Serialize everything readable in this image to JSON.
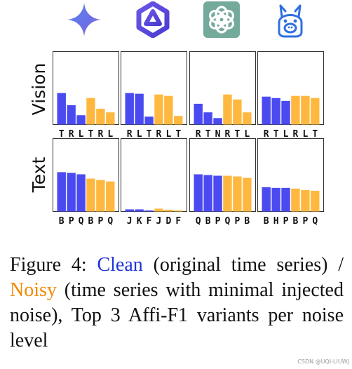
{
  "icons": [
    "gemini-sparkle-icon",
    "qwen-hexagon-icon",
    "openai-logo-icon",
    "llama-icon"
  ],
  "row_labels": [
    "Vision",
    "Text"
  ],
  "colors": {
    "clean": "#4a4af0",
    "noisy": "#ffb83f",
    "clean_text": "#1f33d9",
    "noisy_text": "#f08a00"
  },
  "chart_data": {
    "type": "bar",
    "ylim": [
      0,
      1
    ],
    "grid": false,
    "panels": [
      {
        "row": "Vision",
        "model": "gemini-sparkle-icon",
        "labels": [
          "T",
          "R",
          "L",
          "T",
          "R",
          "L"
        ],
        "values": [
          0.44,
          0.27,
          0.13,
          0.37,
          0.22,
          0.17
        ]
      },
      {
        "row": "Vision",
        "model": "qwen-hexagon-icon",
        "labels": [
          "R",
          "L",
          "T",
          "R",
          "L",
          "T"
        ],
        "values": [
          0.44,
          0.43,
          0.11,
          0.42,
          0.4,
          0.12
        ]
      },
      {
        "row": "Vision",
        "model": "openai-logo-icon",
        "labels": [
          "R",
          "T",
          "N",
          "R",
          "T",
          "L"
        ],
        "values": [
          0.29,
          0.17,
          0.09,
          0.42,
          0.35,
          0.17
        ]
      },
      {
        "row": "Vision",
        "model": "llama-icon",
        "labels": [
          "R",
          "T",
          "L",
          "R",
          "L",
          "T"
        ],
        "values": [
          0.39,
          0.37,
          0.33,
          0.4,
          0.4,
          0.37
        ]
      },
      {
        "row": "Text",
        "model": "gemini-sparkle-icon",
        "labels": [
          "B",
          "P",
          "Q",
          "B",
          "P",
          "Q"
        ],
        "values": [
          0.55,
          0.54,
          0.52,
          0.46,
          0.44,
          0.42
        ]
      },
      {
        "row": "Text",
        "model": "qwen-hexagon-icon",
        "labels": [
          "J",
          "K",
          "F",
          "J",
          "D",
          "F"
        ],
        "values": [
          0.03,
          0.03,
          0.015,
          0.04,
          0.025,
          0.015
        ]
      },
      {
        "row": "Text",
        "model": "openai-logo-icon",
        "labels": [
          "Q",
          "B",
          "P",
          "Q",
          "P",
          "B"
        ],
        "values": [
          0.52,
          0.51,
          0.5,
          0.5,
          0.49,
          0.47
        ]
      },
      {
        "row": "Text",
        "model": "llama-icon",
        "labels": [
          "B",
          "H",
          "P",
          "B",
          "P",
          "Q"
        ],
        "values": [
          0.34,
          0.33,
          0.33,
          0.32,
          0.3,
          0.29
        ]
      }
    ],
    "series_colors": [
      "clean",
      "clean",
      "clean",
      "noisy",
      "noisy",
      "noisy"
    ]
  },
  "caption": {
    "prefix": "Figure 4: ",
    "clean": "Clean",
    "middle": " (original time series) / ",
    "noisy": "Noisy",
    "suffix": " (time series with minimal injected noise), Top 3 Affi-F1 variants per noise level"
  },
  "watermark": "CSDN @UQI-LIUWJ"
}
